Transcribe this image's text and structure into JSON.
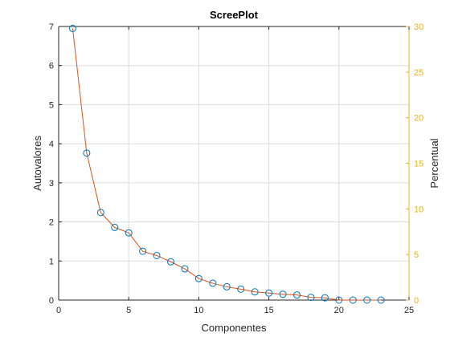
{
  "chart_data": {
    "type": "line",
    "title": "ScreePlot",
    "xlabel": "Componentes",
    "ylabel": "Autovalores",
    "y2label": "Percentual",
    "xlim": [
      0,
      25
    ],
    "ylim": [
      0,
      7
    ],
    "y2lim": [
      0,
      30
    ],
    "xticks": [
      0,
      5,
      10,
      15,
      20,
      25
    ],
    "yticks": [
      0,
      1,
      2,
      3,
      4,
      5,
      6,
      7
    ],
    "y2ticks": [
      0,
      5,
      10,
      15,
      20,
      25,
      30
    ],
    "grid": true,
    "series": [
      {
        "x": [
          1,
          2,
          3,
          4,
          5,
          6,
          7,
          8,
          9,
          10,
          11,
          12,
          13,
          14,
          15,
          16,
          17,
          18,
          19,
          20,
          21,
          22,
          23
        ],
        "values": [
          6.95,
          3.76,
          2.24,
          1.86,
          1.72,
          1.25,
          1.14,
          0.98,
          0.8,
          0.55,
          0.43,
          0.34,
          0.28,
          0.21,
          0.18,
          0.15,
          0.13,
          0.07,
          0.06,
          0.0,
          0.0,
          0.0,
          0.0
        ]
      }
    ],
    "colors": {
      "line": "#d95319",
      "marker": "#0072bd",
      "right_axis": "#edb120",
      "grid": "#dcdcdc",
      "axis": "#262626"
    }
  }
}
